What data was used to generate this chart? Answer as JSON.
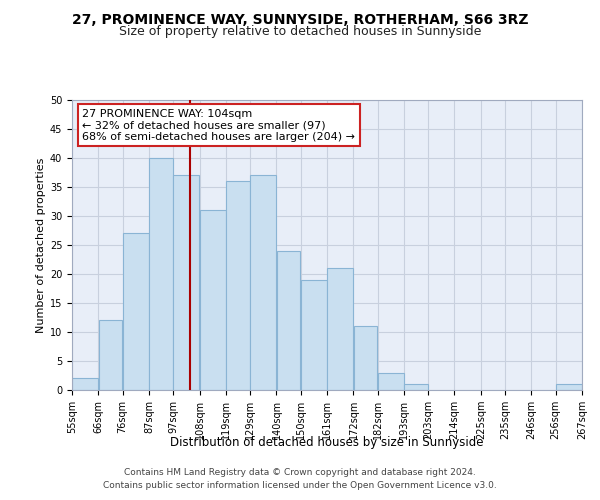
{
  "title": "27, PROMINENCE WAY, SUNNYSIDE, ROTHERHAM, S66 3RZ",
  "subtitle": "Size of property relative to detached houses in Sunnyside",
  "xlabel": "Distribution of detached houses by size in Sunnyside",
  "ylabel": "Number of detached properties",
  "bar_left_edges": [
    55,
    66,
    76,
    87,
    97,
    108,
    119,
    129,
    140,
    150,
    161,
    172,
    182,
    193,
    203,
    214,
    225,
    235,
    246,
    256
  ],
  "bar_widths": [
    11,
    10,
    11,
    10,
    11,
    11,
    10,
    11,
    10,
    11,
    11,
    10,
    11,
    10,
    11,
    11,
    10,
    11,
    10,
    11
  ],
  "bar_heights": [
    2,
    12,
    27,
    40,
    37,
    31,
    36,
    37,
    24,
    19,
    21,
    11,
    3,
    1,
    0,
    0,
    0,
    0,
    0,
    1
  ],
  "tick_labels": [
    "55sqm",
    "66sqm",
    "76sqm",
    "87sqm",
    "97sqm",
    "108sqm",
    "119sqm",
    "129sqm",
    "140sqm",
    "150sqm",
    "161sqm",
    "172sqm",
    "182sqm",
    "193sqm",
    "203sqm",
    "214sqm",
    "225sqm",
    "235sqm",
    "246sqm",
    "256sqm",
    "267sqm"
  ],
  "tick_positions": [
    55,
    66,
    76,
    87,
    97,
    108,
    119,
    129,
    140,
    150,
    161,
    172,
    182,
    193,
    203,
    214,
    225,
    235,
    246,
    256,
    267
  ],
  "bar_color": "#c9dff0",
  "bar_edge_color": "#8ab4d4",
  "property_line_x": 104,
  "property_line_color": "#aa0000",
  "annotation_text": "27 PROMINENCE WAY: 104sqm\n← 32% of detached houses are smaller (97)\n68% of semi-detached houses are larger (204) →",
  "ylim": [
    0,
    50
  ],
  "yticks": [
    0,
    5,
    10,
    15,
    20,
    25,
    30,
    35,
    40,
    45,
    50
  ],
  "xlim": [
    55,
    267
  ],
  "grid_color": "#c8d0de",
  "bg_color": "#e8eef8",
  "footer_line1": "Contains HM Land Registry data © Crown copyright and database right 2024.",
  "footer_line2": "Contains public sector information licensed under the Open Government Licence v3.0.",
  "title_fontsize": 10,
  "subtitle_fontsize": 9,
  "xlabel_fontsize": 8.5,
  "ylabel_fontsize": 8,
  "tick_fontsize": 7,
  "annotation_fontsize": 8,
  "footer_fontsize": 6.5
}
